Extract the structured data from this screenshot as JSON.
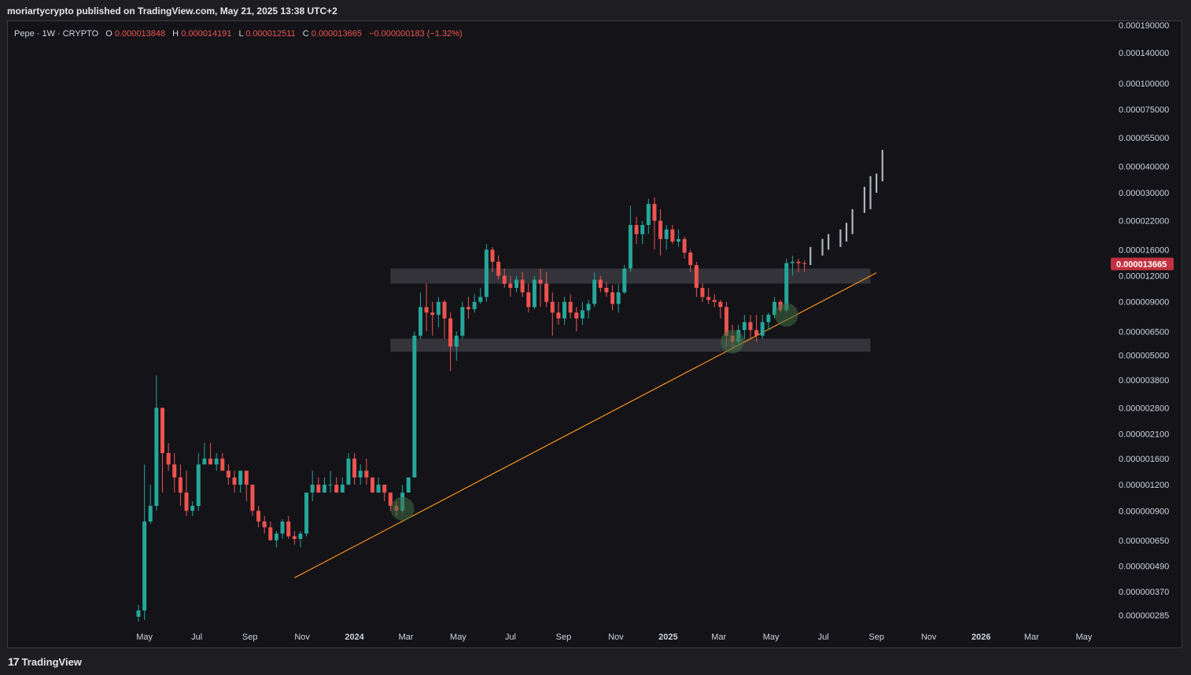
{
  "header": {
    "publisher_line": "moriartycrypto published on TradingView.com, May 21, 2025 13:38 UTC+2"
  },
  "footer": {
    "logo_mark": "17",
    "brand": "TradingView"
  },
  "colors": {
    "up": "#26a69a",
    "down": "#ef5350",
    "trendline": "#f7931a",
    "zone": "#3a3a40",
    "projection": "#b2b5be",
    "price_tag": "#c2313f"
  },
  "legend": {
    "symbol": "Pepe · 1W · CRYPTO",
    "o_label": "O",
    "o_value": "0.000013848",
    "h_label": "H",
    "h_value": "0.000014191",
    "l_label": "L",
    "l_value": "0.000012511",
    "c_label": "C",
    "c_value": "0.000013665",
    "change": "−0.000000183 (−1.32%)"
  },
  "chart_data": {
    "type": "candlestick",
    "timeframe": "1W",
    "y_scale": "log",
    "y_range": [
      2.5e-07,
      0.000195
    ],
    "x_range": [
      "2023-04-24",
      "2026-05-25"
    ],
    "y_ticks": [
      "0.000190000",
      "0.000140000",
      "0.000100000",
      "0.000075000",
      "0.000055000",
      "0.000040000",
      "0.000030000",
      "0.000022000",
      "0.000016000",
      "0.000012000",
      "0.000009000",
      "0.000006500",
      "0.000005000",
      "0.000003800",
      "0.000002800",
      "0.000002100",
      "0.000001600",
      "0.000001200",
      "0.000000900",
      "0.000000650",
      "0.000000490",
      "0.000000370",
      "0.000000285"
    ],
    "x_ticks": [
      {
        "label": "May",
        "date": "2023-05-01"
      },
      {
        "label": "Jul",
        "date": "2023-07-01"
      },
      {
        "label": "Sep",
        "date": "2023-09-01"
      },
      {
        "label": "Nov",
        "date": "2023-11-01"
      },
      {
        "label": "2024",
        "date": "2024-01-01",
        "bold": true
      },
      {
        "label": "Mar",
        "date": "2024-03-01"
      },
      {
        "label": "May",
        "date": "2024-05-01"
      },
      {
        "label": "Jul",
        "date": "2024-07-01"
      },
      {
        "label": "Sep",
        "date": "2024-09-01"
      },
      {
        "label": "Nov",
        "date": "2024-11-01"
      },
      {
        "label": "2025",
        "date": "2025-01-01",
        "bold": true
      },
      {
        "label": "Mar",
        "date": "2025-03-01"
      },
      {
        "label": "May",
        "date": "2025-05-01"
      },
      {
        "label": "Jul",
        "date": "2025-07-01"
      },
      {
        "label": "Sep",
        "date": "2025-09-01"
      },
      {
        "label": "Nov",
        "date": "2025-11-01"
      },
      {
        "label": "2026",
        "date": "2026-01-01",
        "bold": true
      },
      {
        "label": "Mar",
        "date": "2026-03-01"
      },
      {
        "label": "May",
        "date": "2026-05-01"
      }
    ],
    "last_price": "0.000013665",
    "candles": [
      {
        "d": "2023-04-24",
        "o": 2.8e-07,
        "h": 3.2e-07,
        "l": 2.65e-07,
        "c": 3e-07
      },
      {
        "d": "2023-05-01",
        "o": 3e-07,
        "h": 1.5e-06,
        "l": 2.7e-07,
        "c": 8e-07
      },
      {
        "d": "2023-05-08",
        "o": 8e-07,
        "h": 1.2e-06,
        "l": 7.8e-07,
        "c": 9.5e-07
      },
      {
        "d": "2023-05-15",
        "o": 9.5e-07,
        "h": 4e-06,
        "l": 9e-07,
        "c": 2.8e-06
      },
      {
        "d": "2023-05-22",
        "o": 2.8e-06,
        "h": 2.8e-06,
        "l": 1.1e-06,
        "c": 1.7e-06
      },
      {
        "d": "2023-05-29",
        "o": 1.7e-06,
        "h": 1.9e-06,
        "l": 1.4e-06,
        "c": 1.5e-06
      },
      {
        "d": "2023-06-05",
        "o": 1.5e-06,
        "h": 1.7e-06,
        "l": 1.1e-06,
        "c": 1.3e-06
      },
      {
        "d": "2023-06-12",
        "o": 1.3e-06,
        "h": 1.5e-06,
        "l": 9.5e-07,
        "c": 1.1e-06
      },
      {
        "d": "2023-06-19",
        "o": 1.1e-06,
        "h": 1.4e-06,
        "l": 8.5e-07,
        "c": 9e-07
      },
      {
        "d": "2023-06-26",
        "o": 9e-07,
        "h": 1e-06,
        "l": 8.5e-07,
        "c": 9.5e-07
      },
      {
        "d": "2023-07-03",
        "o": 9.5e-07,
        "h": 1.7e-06,
        "l": 9e-07,
        "c": 1.5e-06
      },
      {
        "d": "2023-07-10",
        "o": 1.5e-06,
        "h": 1.9e-06,
        "l": 1.5e-06,
        "c": 1.6e-06
      },
      {
        "d": "2023-07-17",
        "o": 1.6e-06,
        "h": 1.9e-06,
        "l": 1.5e-06,
        "c": 1.5e-06
      },
      {
        "d": "2023-07-24",
        "o": 1.5e-06,
        "h": 1.7e-06,
        "l": 1.4e-06,
        "c": 1.6e-06
      },
      {
        "d": "2023-07-31",
        "o": 1.6e-06,
        "h": 1.7e-06,
        "l": 1.4e-06,
        "c": 1.4e-06
      },
      {
        "d": "2023-08-07",
        "o": 1.4e-06,
        "h": 1.5e-06,
        "l": 1.2e-06,
        "c": 1.3e-06
      },
      {
        "d": "2023-08-14",
        "o": 1.3e-06,
        "h": 1.4e-06,
        "l": 1.1e-06,
        "c": 1.2e-06
      },
      {
        "d": "2023-08-21",
        "o": 1.2e-06,
        "h": 1.4e-06,
        "l": 1.1e-06,
        "c": 1.4e-06
      },
      {
        "d": "2023-08-28",
        "o": 1.4e-06,
        "h": 1.4e-06,
        "l": 1e-06,
        "c": 1.2e-06
      },
      {
        "d": "2023-09-04",
        "o": 1.2e-06,
        "h": 1.2e-06,
        "l": 8.5e-07,
        "c": 9e-07
      },
      {
        "d": "2023-09-11",
        "o": 9e-07,
        "h": 9.5e-07,
        "l": 7.5e-07,
        "c": 8e-07
      },
      {
        "d": "2023-09-18",
        "o": 8e-07,
        "h": 8.5e-07,
        "l": 7e-07,
        "c": 7.5e-07
      },
      {
        "d": "2023-09-25",
        "o": 7.5e-07,
        "h": 8e-07,
        "l": 6.5e-07,
        "c": 6.5e-07
      },
      {
        "d": "2023-10-02",
        "o": 6.5e-07,
        "h": 7.2e-07,
        "l": 6e-07,
        "c": 7e-07
      },
      {
        "d": "2023-10-09",
        "o": 7e-07,
        "h": 8.2e-07,
        "l": 6.6e-07,
        "c": 8e-07
      },
      {
        "d": "2023-10-16",
        "o": 8e-07,
        "h": 8.5e-07,
        "l": 6.6e-07,
        "c": 6.8e-07
      },
      {
        "d": "2023-10-23",
        "o": 6.8e-07,
        "h": 7.2e-07,
        "l": 6.2e-07,
        "c": 6.6e-07
      },
      {
        "d": "2023-10-30",
        "o": 6.6e-07,
        "h": 7.2e-07,
        "l": 6e-07,
        "c": 7e-07
      },
      {
        "d": "2023-11-06",
        "o": 7e-07,
        "h": 1.1e-06,
        "l": 6.8e-07,
        "c": 1.1e-06
      },
      {
        "d": "2023-11-13",
        "o": 1.1e-06,
        "h": 1.4e-06,
        "l": 1e-06,
        "c": 1.2e-06
      },
      {
        "d": "2023-11-20",
        "o": 1.2e-06,
        "h": 1.3e-06,
        "l": 1.1e-06,
        "c": 1.1e-06
      },
      {
        "d": "2023-11-27",
        "o": 1.1e-06,
        "h": 1.3e-06,
        "l": 1.1e-06,
        "c": 1.2e-06
      },
      {
        "d": "2023-12-04",
        "o": 1.2e-06,
        "h": 1.4e-06,
        "l": 1.1e-06,
        "c": 1.2e-06
      },
      {
        "d": "2023-12-11",
        "o": 1.2e-06,
        "h": 1.3e-06,
        "l": 1.1e-06,
        "c": 1.1e-06
      },
      {
        "d": "2023-12-18",
        "o": 1.1e-06,
        "h": 1.3e-06,
        "l": 1.1e-06,
        "c": 1.2e-06
      },
      {
        "d": "2023-12-25",
        "o": 1.2e-06,
        "h": 1.7e-06,
        "l": 1.2e-06,
        "c": 1.6e-06
      },
      {
        "d": "2024-01-01",
        "o": 1.6e-06,
        "h": 1.7e-06,
        "l": 1.2e-06,
        "c": 1.3e-06
      },
      {
        "d": "2024-01-08",
        "o": 1.3e-06,
        "h": 1.5e-06,
        "l": 1.2e-06,
        "c": 1.4e-06
      },
      {
        "d": "2024-01-15",
        "o": 1.4e-06,
        "h": 1.6e-06,
        "l": 1.2e-06,
        "c": 1.3e-06
      },
      {
        "d": "2024-01-22",
        "o": 1.3e-06,
        "h": 1.3e-06,
        "l": 1.1e-06,
        "c": 1.1e-06
      },
      {
        "d": "2024-01-29",
        "o": 1.1e-06,
        "h": 1.3e-06,
        "l": 1.1e-06,
        "c": 1.2e-06
      },
      {
        "d": "2024-02-05",
        "o": 1.2e-06,
        "h": 1.2e-06,
        "l": 1e-06,
        "c": 1.1e-06
      },
      {
        "d": "2024-02-12",
        "o": 1.1e-06,
        "h": 1.1e-06,
        "l": 9e-07,
        "c": 9.5e-07
      },
      {
        "d": "2024-02-19",
        "o": 9.5e-07,
        "h": 1e-06,
        "l": 8.5e-07,
        "c": 9e-07
      },
      {
        "d": "2024-02-26",
        "o": 9e-07,
        "h": 1.2e-06,
        "l": 8.8e-07,
        "c": 1.1e-06
      },
      {
        "d": "2024-03-04",
        "o": 1.1e-06,
        "h": 1.3e-06,
        "l": 1.1e-06,
        "c": 1.3e-06
      },
      {
        "d": "2024-03-11",
        "o": 1.3e-06,
        "h": 6.5e-06,
        "l": 1.3e-06,
        "c": 6.2e-06
      },
      {
        "d": "2024-03-18",
        "o": 6.2e-06,
        "h": 1e-05,
        "l": 6e-06,
        "c": 8.5e-06
      },
      {
        "d": "2024-03-25",
        "o": 8.5e-06,
        "h": 1.1e-05,
        "l": 6.5e-06,
        "c": 8e-06
      },
      {
        "d": "2024-04-01",
        "o": 8e-06,
        "h": 9e-06,
        "l": 6.2e-06,
        "c": 7.8e-06
      },
      {
        "d": "2024-04-08",
        "o": 7.8e-06,
        "h": 9.5e-06,
        "l": 6.8e-06,
        "c": 9e-06
      },
      {
        "d": "2024-04-15",
        "o": 9e-06,
        "h": 9.2e-06,
        "l": 6e-06,
        "c": 7.5e-06
      },
      {
        "d": "2024-04-22",
        "o": 7.5e-06,
        "h": 8e-06,
        "l": 4.2e-06,
        "c": 5.5e-06
      },
      {
        "d": "2024-04-29",
        "o": 5.5e-06,
        "h": 6.5e-06,
        "l": 4.7e-06,
        "c": 6.2e-06
      },
      {
        "d": "2024-05-06",
        "o": 6.2e-06,
        "h": 9e-06,
        "l": 6e-06,
        "c": 8.5e-06
      },
      {
        "d": "2024-05-13",
        "o": 8.5e-06,
        "h": 9.5e-06,
        "l": 7.5e-06,
        "c": 8.3e-06
      },
      {
        "d": "2024-05-20",
        "o": 8.3e-06,
        "h": 9.8e-06,
        "l": 8e-06,
        "c": 9e-06
      },
      {
        "d": "2024-05-27",
        "o": 9e-06,
        "h": 1.05e-05,
        "l": 8.8e-06,
        "c": 9.5e-06
      },
      {
        "d": "2024-06-03",
        "o": 9.5e-06,
        "h": 1.7e-05,
        "l": 9e-06,
        "c": 1.6e-05
      },
      {
        "d": "2024-06-10",
        "o": 1.6e-05,
        "h": 1.65e-05,
        "l": 1.25e-05,
        "c": 1.4e-05
      },
      {
        "d": "2024-06-17",
        "o": 1.4e-05,
        "h": 1.5e-05,
        "l": 1.15e-05,
        "c": 1.2e-05
      },
      {
        "d": "2024-06-24",
        "o": 1.2e-05,
        "h": 1.3e-05,
        "l": 1.05e-05,
        "c": 1.1e-05
      },
      {
        "d": "2024-07-01",
        "o": 1.1e-05,
        "h": 1.2e-05,
        "l": 9.5e-06,
        "c": 1.05e-05
      },
      {
        "d": "2024-07-08",
        "o": 1.05e-05,
        "h": 1.2e-05,
        "l": 1e-05,
        "c": 1.15e-05
      },
      {
        "d": "2024-07-15",
        "o": 1.15e-05,
        "h": 1.25e-05,
        "l": 9.5e-06,
        "c": 1e-05
      },
      {
        "d": "2024-07-22",
        "o": 1e-05,
        "h": 1.1e-05,
        "l": 8e-06,
        "c": 8.5e-06
      },
      {
        "d": "2024-07-29",
        "o": 8.5e-06,
        "h": 1.2e-05,
        "l": 8.3e-06,
        "c": 1.15e-05
      },
      {
        "d": "2024-08-05",
        "o": 1.15e-05,
        "h": 1.3e-05,
        "l": 8.5e-06,
        "c": 1.1e-05
      },
      {
        "d": "2024-08-12",
        "o": 1.1e-05,
        "h": 1.25e-05,
        "l": 8.5e-06,
        "c": 9e-06
      },
      {
        "d": "2024-08-19",
        "o": 9e-06,
        "h": 1e-05,
        "l": 6.2e-06,
        "c": 8e-06
      },
      {
        "d": "2024-08-26",
        "o": 8e-06,
        "h": 9e-06,
        "l": 7e-06,
        "c": 7.5e-06
      },
      {
        "d": "2024-09-02",
        "o": 7.5e-06,
        "h": 9.5e-06,
        "l": 7e-06,
        "c": 9e-06
      },
      {
        "d": "2024-09-09",
        "o": 9e-06,
        "h": 9.8e-06,
        "l": 7.5e-06,
        "c": 8e-06
      },
      {
        "d": "2024-09-16",
        "o": 8e-06,
        "h": 8.5e-06,
        "l": 6.5e-06,
        "c": 7.5e-06
      },
      {
        "d": "2024-09-23",
        "o": 7.5e-06,
        "h": 9e-06,
        "l": 7e-06,
        "c": 8.2e-06
      },
      {
        "d": "2024-09-30",
        "o": 8.2e-06,
        "h": 9.2e-06,
        "l": 7.5e-06,
        "c": 8.8e-06
      },
      {
        "d": "2024-10-07",
        "o": 8.8e-06,
        "h": 1.25e-05,
        "l": 8.5e-06,
        "c": 1.15e-05
      },
      {
        "d": "2024-10-14",
        "o": 1.15e-05,
        "h": 1.2e-05,
        "l": 1e-05,
        "c": 1.05e-05
      },
      {
        "d": "2024-10-21",
        "o": 1.05e-05,
        "h": 1.12e-05,
        "l": 9.5e-06,
        "c": 1e-05
      },
      {
        "d": "2024-10-28",
        "o": 1e-05,
        "h": 1.08e-05,
        "l": 8.2e-06,
        "c": 8.8e-06
      },
      {
        "d": "2024-11-04",
        "o": 8.8e-06,
        "h": 1.1e-05,
        "l": 8e-06,
        "c": 1e-05
      },
      {
        "d": "2024-11-11",
        "o": 1e-05,
        "h": 1.35e-05,
        "l": 9.8e-06,
        "c": 1.3e-05
      },
      {
        "d": "2024-11-18",
        "o": 1.3e-05,
        "h": 2.6e-05,
        "l": 1.25e-05,
        "c": 2.1e-05
      },
      {
        "d": "2024-11-25",
        "o": 2.1e-05,
        "h": 2.3e-05,
        "l": 1.7e-05,
        "c": 1.9e-05
      },
      {
        "d": "2024-12-02",
        "o": 1.9e-05,
        "h": 2.2e-05,
        "l": 1.7e-05,
        "c": 2.1e-05
      },
      {
        "d": "2024-12-09",
        "o": 2.1e-05,
        "h": 2.8e-05,
        "l": 1.9e-05,
        "c": 2.65e-05
      },
      {
        "d": "2024-12-16",
        "o": 2.65e-05,
        "h": 2.85e-05,
        "l": 1.6e-05,
        "c": 2.2e-05
      },
      {
        "d": "2024-12-23",
        "o": 2.2e-05,
        "h": 2.5e-05,
        "l": 1.5e-05,
        "c": 1.8e-05
      },
      {
        "d": "2024-12-30",
        "o": 1.8e-05,
        "h": 2.1e-05,
        "l": 1.6e-05,
        "c": 2e-05
      },
      {
        "d": "2025-01-06",
        "o": 2e-05,
        "h": 2.1e-05,
        "l": 1.7e-05,
        "c": 1.75e-05
      },
      {
        "d": "2025-01-13",
        "o": 1.75e-05,
        "h": 2e-05,
        "l": 1.65e-05,
        "c": 1.8e-05
      },
      {
        "d": "2025-01-20",
        "o": 1.8e-05,
        "h": 1.85e-05,
        "l": 1.45e-05,
        "c": 1.55e-05
      },
      {
        "d": "2025-01-27",
        "o": 1.55e-05,
        "h": 1.6e-05,
        "l": 1.25e-05,
        "c": 1.35e-05
      },
      {
        "d": "2025-02-03",
        "o": 1.35e-05,
        "h": 1.4e-05,
        "l": 9.5e-06,
        "c": 1.05e-05
      },
      {
        "d": "2025-02-10",
        "o": 1.05e-05,
        "h": 1.1e-05,
        "l": 9e-06,
        "c": 9.5e-06
      },
      {
        "d": "2025-02-17",
        "o": 9.5e-06,
        "h": 1.05e-05,
        "l": 8.8e-06,
        "c": 9.2e-06
      },
      {
        "d": "2025-02-24",
        "o": 9.2e-06,
        "h": 9.8e-06,
        "l": 8.5e-06,
        "c": 9e-06
      },
      {
        "d": "2025-03-03",
        "o": 9e-06,
        "h": 9.2e-06,
        "l": 7.5e-06,
        "c": 8.5e-06
      },
      {
        "d": "2025-03-10",
        "o": 8.5e-06,
        "h": 9e-06,
        "l": 5.5e-06,
        "c": 6.2e-06
      },
      {
        "d": "2025-03-17",
        "o": 6.2e-06,
        "h": 7e-06,
        "l": 5.3e-06,
        "c": 5.8e-06
      },
      {
        "d": "2025-03-24",
        "o": 5.8e-06,
        "h": 7e-06,
        "l": 5.5e-06,
        "c": 6.6e-06
      },
      {
        "d": "2025-03-31",
        "o": 6.6e-06,
        "h": 7.8e-06,
        "l": 6e-06,
        "c": 7.2e-06
      },
      {
        "d": "2025-04-07",
        "o": 7.2e-06,
        "h": 7.8e-06,
        "l": 6e-06,
        "c": 6.6e-06
      },
      {
        "d": "2025-04-14",
        "o": 6.6e-06,
        "h": 7.8e-06,
        "l": 5.8e-06,
        "c": 6.2e-06
      },
      {
        "d": "2025-04-21",
        "o": 6.2e-06,
        "h": 7.8e-06,
        "l": 6e-06,
        "c": 7.2e-06
      },
      {
        "d": "2025-04-28",
        "o": 7.2e-06,
        "h": 8e-06,
        "l": 6.6e-06,
        "c": 7.8e-06
      },
      {
        "d": "2025-05-05",
        "o": 7.8e-06,
        "h": 9.5e-06,
        "l": 7.5e-06,
        "c": 9e-06
      },
      {
        "d": "2025-05-12",
        "o": 9e-06,
        "h": 9.2e-06,
        "l": 8e-06,
        "c": 8.2e-06
      },
      {
        "d": "2025-05-19",
        "o": 8.2e-06,
        "h": 1.45e-05,
        "l": 8e-06,
        "c": 1.38e-05
      },
      {
        "d": "2025-05-26",
        "o": 1.38e-05,
        "h": 1.5e-05,
        "l": 1.2e-05,
        "c": 1.4e-05
      },
      {
        "d": "2025-06-02",
        "o": 1.4e-05,
        "h": 1.45e-05,
        "l": 1.25e-05,
        "c": 1.38e-05
      },
      {
        "d": "2025-06-09",
        "o": 1.38e-05,
        "h": 1.42e-05,
        "l": 1.25e-05,
        "c": 1.37e-05
      }
    ],
    "projection": [
      {
        "d": "2025-06-16",
        "lo": 1.35e-05,
        "hi": 1.65e-05
      },
      {
        "d": "2025-06-30",
        "lo": 1.5e-05,
        "hi": 1.8e-05
      },
      {
        "d": "2025-07-07",
        "lo": 1.6e-05,
        "hi": 1.9e-05
      },
      {
        "d": "2025-07-21",
        "lo": 1.65e-05,
        "hi": 2e-05
      },
      {
        "d": "2025-07-28",
        "lo": 1.75e-05,
        "hi": 2.15e-05
      },
      {
        "d": "2025-08-04",
        "lo": 1.9e-05,
        "hi": 2.5e-05
      },
      {
        "d": "2025-08-18",
        "lo": 2.4e-05,
        "hi": 3.2e-05
      },
      {
        "d": "2025-08-25",
        "lo": 2.5e-05,
        "hi": 3.6e-05
      },
      {
        "d": "2025-09-01",
        "lo": 3e-05,
        "hi": 3.7e-05
      },
      {
        "d": "2025-09-08",
        "lo": 3.4e-05,
        "hi": 4.8e-05
      }
    ],
    "zones": [
      {
        "from": "2024-02-12",
        "to": "2025-08-25",
        "lo": 1.1e-05,
        "hi": 1.3e-05
      },
      {
        "from": "2024-02-12",
        "to": "2025-08-25",
        "lo": 5.2e-06,
        "hi": 6e-06
      }
    ],
    "trendline": {
      "from_d": "2023-10-23",
      "from_p": 4.3e-07,
      "to_d": "2025-09-01",
      "to_p": 1.24e-05
    },
    "markers": [
      {
        "d": "2024-02-26",
        "p": 9.2e-07
      },
      {
        "d": "2025-03-17",
        "p": 5.8e-06
      },
      {
        "d": "2025-05-19",
        "p": 7.8e-06
      }
    ]
  }
}
